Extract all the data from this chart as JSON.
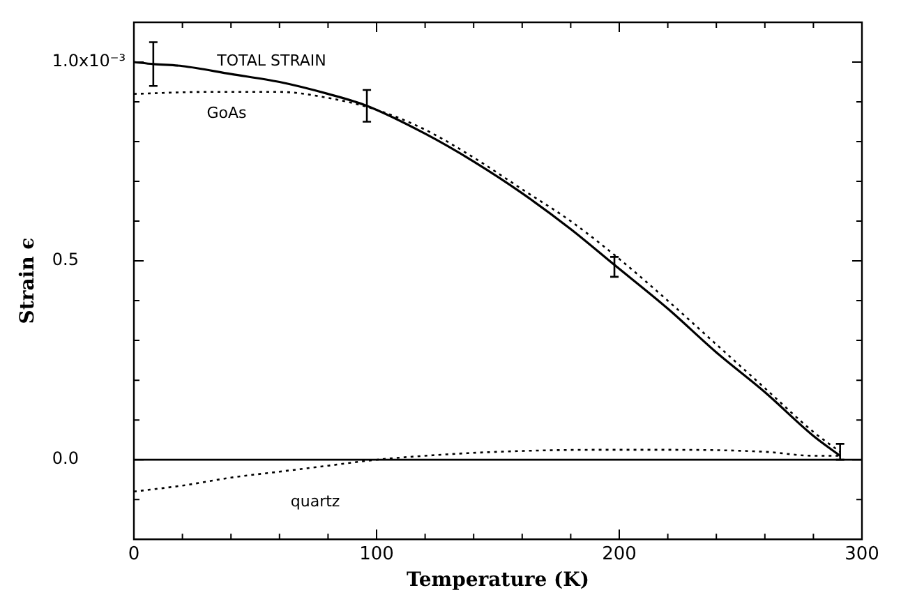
{
  "chart_data": {
    "type": "line",
    "xlabel": "Temperature (K)",
    "ylabel": "Strain ϵ",
    "xlim": [
      0,
      300
    ],
    "ylim": [
      -0.2,
      1.1
    ],
    "xticks": [
      0,
      {
        "value": 20,
        "label": null
      },
      {
        "value": 40,
        "label": null
      },
      {
        "value": 60,
        "label": null
      },
      {
        "value": 80,
        "label": null
      },
      100,
      {
        "value": 120,
        "label": null
      },
      {
        "value": 140,
        "label": null
      },
      {
        "value": 160,
        "label": null
      },
      {
        "value": 180,
        "label": null
      },
      200,
      {
        "value": 220,
        "label": null
      },
      {
        "value": 240,
        "label": null
      },
      {
        "value": 260,
        "label": null
      },
      {
        "value": 280,
        "label": null
      },
      300
    ],
    "yticks": [
      {
        "value": -0.1,
        "label": null
      },
      {
        "value": 0,
        "label": "0.0"
      },
      {
        "value": 0.1,
        "label": null
      },
      {
        "value": 0.2,
        "label": null
      },
      {
        "value": 0.3,
        "label": null
      },
      {
        "value": 0.4,
        "label": null
      },
      0.5,
      {
        "value": 0.6,
        "label": null
      },
      {
        "value": 0.7,
        "label": null
      },
      {
        "value": 0.8,
        "label": null
      },
      {
        "value": 0.9,
        "label": null
      },
      {
        "value": 1.0,
        "label": "1.0"
      }
    ],
    "annotations": [
      "x10⁻³"
    ],
    "grid": false,
    "legend": false,
    "marker": "none",
    "ref_lines": [
      {
        "axis": "y",
        "value": 0,
        "label": null,
        "color": "#000000",
        "line_style": "solid"
      }
    ],
    "series": [
      {
        "name": "TOTAL STRAIN",
        "color": "#000000",
        "line_style": "solid",
        "x": [
          0,
          8,
          20,
          40,
          60,
          80,
          96,
          120,
          140,
          160,
          180,
          198,
          220,
          240,
          260,
          280,
          291
        ],
        "values": [
          1.0,
          0.995,
          0.99,
          0.97,
          0.95,
          0.92,
          0.89,
          0.82,
          0.75,
          0.67,
          0.58,
          0.49,
          0.38,
          0.27,
          0.17,
          0.06,
          0.01
        ],
        "errors": [
          null,
          [
            0.94,
            1.05
          ],
          null,
          null,
          null,
          null,
          [
            0.85,
            0.93
          ],
          null,
          null,
          null,
          null,
          [
            0.46,
            0.51
          ],
          null,
          null,
          null,
          null,
          [
            0.0,
            0.04
          ]
        ]
      },
      {
        "name": "GoAs",
        "color": "#000000",
        "line_style": "dotted",
        "x": [
          0,
          30,
          60,
          80,
          100,
          120,
          140,
          160,
          180,
          200,
          220,
          240,
          260,
          280,
          291
        ],
        "values": [
          0.92,
          0.925,
          0.925,
          0.91,
          0.88,
          0.83,
          0.76,
          0.68,
          0.6,
          0.505,
          0.4,
          0.29,
          0.18,
          0.07,
          0.02
        ]
      },
      {
        "name": "quartz",
        "color": "#000000",
        "line_style": "dotted",
        "x": [
          0,
          20,
          40,
          60,
          80,
          100,
          120,
          150,
          190,
          220,
          260,
          280,
          291
        ],
        "values": [
          -0.08,
          -0.065,
          -0.045,
          -0.03,
          -0.015,
          0.0,
          0.01,
          0.02,
          0.025,
          0.025,
          0.02,
          0.01,
          0.01
        ]
      }
    ]
  }
}
